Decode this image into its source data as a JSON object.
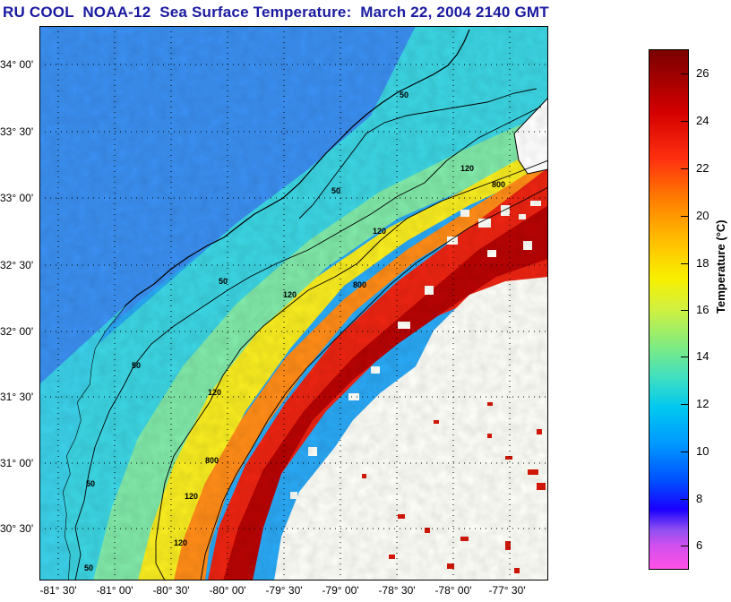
{
  "title": "RU COOL  NOAA-12  Sea Surface Temperature:  March 22, 2004 2140 GMT",
  "map": {
    "lat_labels": [
      "34° 00'",
      "33° 30'",
      "33° 00'",
      "32° 30'",
      "32° 00'",
      "31° 30'",
      "31° 00'",
      "30° 30'"
    ],
    "lon_labels": [
      "-81° 30'",
      "-81° 00'",
      "-80° 30'",
      "-80° 00'",
      "-79° 30'",
      "-79° 00'",
      "-78° 30'",
      "-78° 00'",
      "-77° 30'"
    ],
    "contour_labels": [
      "50",
      "50",
      "50",
      "50",
      "50",
      "120",
      "120",
      "120",
      "120",
      "120",
      "800",
      "800",
      "800",
      "120",
      "50"
    ],
    "colors": {
      "land": "#ffffff",
      "cold": "#1e9cf0",
      "cool": "#3cd0e6",
      "mild": "#80e6b0",
      "warm_yellow": "#ffe020",
      "orange": "#ff8a18",
      "red": "#e82010",
      "gulf_stream": "#b00000"
    }
  },
  "colorbar": {
    "title": "Temperature (°C)",
    "ticks": [
      "26",
      "24",
      "22",
      "20",
      "18",
      "16",
      "14",
      "12",
      "10",
      "8",
      "6"
    ]
  }
}
